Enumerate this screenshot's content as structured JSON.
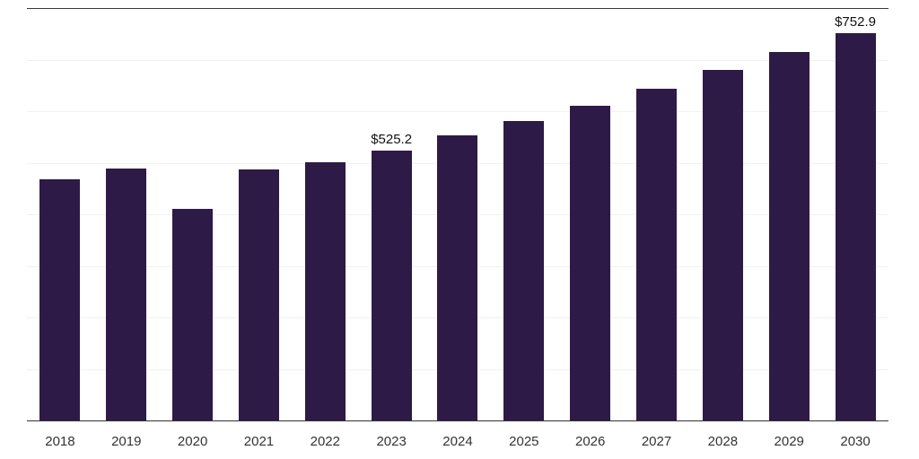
{
  "chart_data": {
    "type": "bar",
    "title": "",
    "xlabel": "",
    "ylabel": "",
    "categories": [
      "2018",
      "2019",
      "2020",
      "2021",
      "2022",
      "2023",
      "2024",
      "2025",
      "2026",
      "2027",
      "2028",
      "2029",
      "2030"
    ],
    "values": [
      469,
      490,
      412,
      488,
      503,
      525.2,
      554,
      582,
      612,
      645,
      681,
      717,
      752.9
    ],
    "annotations": [
      {
        "category": "2023",
        "text": "$525.2"
      },
      {
        "category": "2030",
        "text": "$752.9"
      }
    ],
    "ylim": [
      0,
      800
    ],
    "grid_step": 100,
    "grid": true,
    "legend": "none",
    "bar_color": "#2e1a47",
    "axis_line_color": "#333333",
    "gridline_color": "#f1f1f1",
    "tick_label_color": "#333333"
  }
}
